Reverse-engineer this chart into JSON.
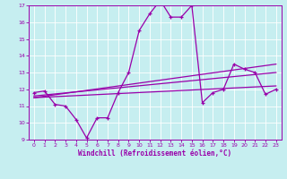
{
  "xlabel": "Windchill (Refroidissement éolien,°C)",
  "xlim": [
    -0.5,
    23.5
  ],
  "ylim": [
    9,
    17
  ],
  "yticks": [
    9,
    10,
    11,
    12,
    13,
    14,
    15,
    16,
    17
  ],
  "xticks": [
    0,
    1,
    2,
    3,
    4,
    5,
    6,
    7,
    8,
    9,
    10,
    11,
    12,
    13,
    14,
    15,
    16,
    17,
    18,
    19,
    20,
    21,
    22,
    23
  ],
  "background_color": "#c6eef0",
  "grid_color": "#b0dde0",
  "line_color": "#9900aa",
  "line1_x": [
    0,
    1,
    2,
    3,
    4,
    5,
    6,
    7,
    8,
    9,
    10,
    11,
    12,
    13,
    14,
    15,
    16,
    17,
    18,
    19,
    20,
    21,
    22,
    23
  ],
  "line1_y": [
    11.8,
    11.9,
    11.1,
    11.0,
    10.2,
    9.1,
    10.3,
    10.3,
    11.8,
    13.0,
    15.5,
    16.5,
    17.3,
    16.3,
    16.3,
    17.0,
    11.2,
    11.8,
    12.0,
    13.5,
    13.2,
    13.0,
    11.7,
    12.0
  ],
  "trend1_x": [
    0,
    23
  ],
  "trend1_y": [
    11.5,
    13.5
  ],
  "trend2_x": [
    0,
    23
  ],
  "trend2_y": [
    11.6,
    13.0
  ],
  "trend3_x": [
    0,
    23
  ],
  "trend3_y": [
    11.5,
    12.2
  ]
}
